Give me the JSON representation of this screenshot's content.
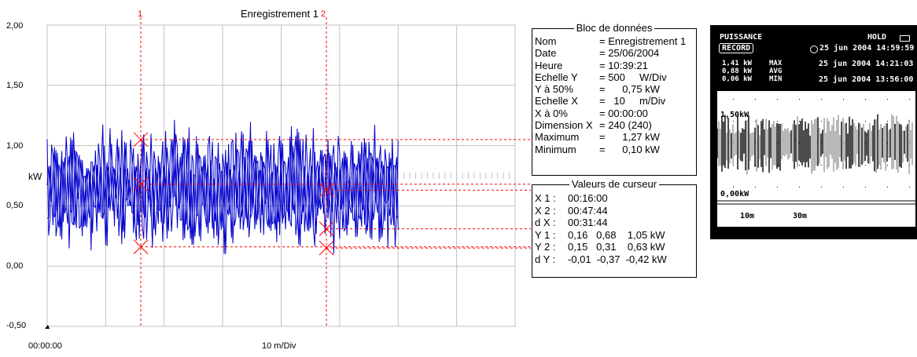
{
  "chart": {
    "title": "Enregistrement 1",
    "ylabel": "kW",
    "y_ticks": [
      "2,00",
      "1,50",
      "1,00",
      "0,50",
      "0,00",
      "-0,50"
    ],
    "x_start_label": "00:00:00",
    "x_div_label": "10 m/Div",
    "cursor1_label": "1",
    "cursor2_label": "2",
    "colors": {
      "trace": "#0000cc",
      "cursor": "#ff0000",
      "grid": "#c0c0c0"
    }
  },
  "chart_data": {
    "type": "line",
    "title": "Enregistrement 1",
    "ylabel": "kW",
    "ylim": [
      -0.5,
      2.0
    ],
    "xlim_minutes": [
      0,
      80
    ],
    "y_ticks": [
      2.0,
      1.5,
      1.0,
      0.5,
      0.0,
      -0.5
    ],
    "series": [
      {
        "name": "Y1",
        "x_range_minutes": [
          0,
          60
        ],
        "max": 1.27,
        "min": 0.1
      }
    ],
    "cursors": [
      {
        "label": "1",
        "x": "00:16:00",
        "y": [
          0.16,
          0.68,
          1.05
        ]
      },
      {
        "label": "2",
        "x": "00:47:44",
        "y": [
          0.15,
          0.31,
          0.63
        ]
      }
    ]
  },
  "data_block": {
    "title": "Bloc de données",
    "rows": [
      {
        "k": "Nom",
        "v": "= Enregistrement 1"
      },
      {
        "k": "Date",
        "v": "= 25/06/2004"
      },
      {
        "k": "Heure",
        "v": "= 10:39:21"
      },
      {
        "k": "Echelle Y",
        "v": "= 500     W/Div"
      },
      {
        "k": "Y à 50%",
        "v": "=      0,75 kW"
      },
      {
        "k": "Echelle X",
        "v": "=   10     m/Div"
      },
      {
        "k": "X à 0%",
        "v": "= 00:00:00"
      },
      {
        "k": "Dimension X",
        "v": "= 240 (240)"
      },
      {
        "k": "Maximum",
        "v": "=      1,27 kW"
      },
      {
        "k": "Minimum",
        "v": "=      0,10 kW"
      }
    ]
  },
  "cursor_values": {
    "title": "Valeurs de curseur",
    "rows": [
      {
        "k": "X 1 :",
        "v": "00:16:00"
      },
      {
        "k": "X 2 :",
        "v": "00:47:44"
      },
      {
        "k": "d X :",
        "v": "00:31:44"
      },
      {
        "k": "Y 1 :",
        "v": "0,16   0,68    1,05 kW"
      },
      {
        "k": "Y 2 :",
        "v": "0,15   0,31    0,63 kW"
      },
      {
        "k": "d Y :",
        "v": "-0,01  -0,37  -0,42 kW"
      }
    ]
  },
  "meter": {
    "mode": "PUISSANCE",
    "hold": "HOLD",
    "record": "RECORD",
    "datetime": "25 jun 2004   14:59:59",
    "rows": [
      {
        "value": "1,41 kW",
        "tag": "MAX",
        "time": "25 jun 2004  14:21:03"
      },
      {
        "value": "0,88 kW",
        "tag": "AVG",
        "time": ""
      },
      {
        "value": "0,06 kW",
        "tag": "MIN",
        "time": "25 jun 2004  13:56:00"
      }
    ],
    "scale_top": "1,50kW",
    "scale_bottom": "0,00kW",
    "x_label_1": "10m",
    "x_label_2": "30m"
  }
}
